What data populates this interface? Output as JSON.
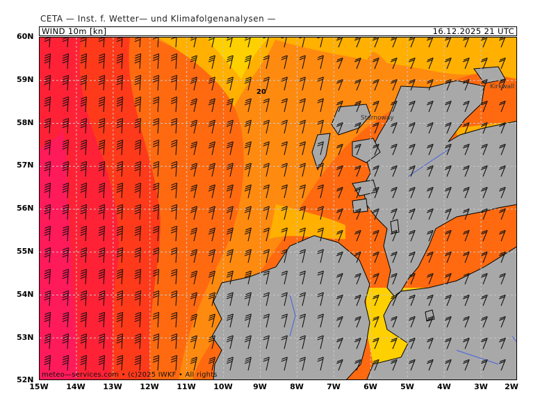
{
  "header": {
    "title": "CETA — Inst. f. Wetter— und Klimafolgenanalysen —",
    "variable": "WIND 10m [kn]",
    "datetime": "16.12.2025 21 UTC"
  },
  "map": {
    "lat_labels": [
      "60N",
      "59N",
      "58N",
      "57N",
      "56N",
      "55N",
      "54N",
      "53N",
      "52N"
    ],
    "lon_labels": [
      "15W",
      "14W",
      "13W",
      "12W",
      "11W",
      "10W",
      "9W",
      "8W",
      "7W",
      "6W",
      "5W",
      "4W",
      "3W",
      "2W"
    ],
    "place_labels": [
      "Kirkwall",
      "Stornoway"
    ],
    "contour_label": "20",
    "credit": "meteo—services.com • (c)2025 IWKF • All rights"
  },
  "colors": {
    "land": "#a8a8a8",
    "water_inland": "#4060e0",
    "grid": "#bbbbbb",
    "wind_bands": [
      "#ff1a5a",
      "#ff2236",
      "#ff3a1a",
      "#ff6a10",
      "#ff8a10",
      "#ffb000",
      "#ffd000"
    ]
  }
}
